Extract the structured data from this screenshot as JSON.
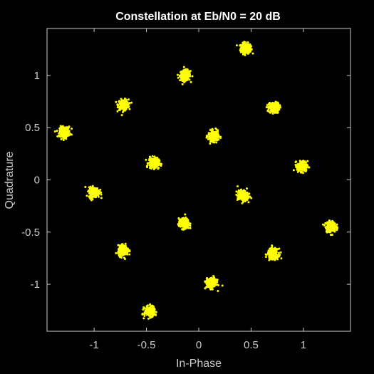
{
  "chart_data": {
    "type": "scatter",
    "title": "Constellation at Eb/N0 = 20 dB",
    "xlabel": "In-Phase",
    "ylabel": "Quadrature",
    "xlim": [
      -1.45,
      1.45
    ],
    "ylim": [
      -1.45,
      1.45
    ],
    "xticks": [
      -1,
      -0.5,
      0,
      0.5,
      1
    ],
    "xtick_labels": [
      "-1",
      "-0.5",
      "0",
      "0.5",
      "1"
    ],
    "yticks": [
      1,
      0.5,
      0,
      -0.5,
      -1
    ],
    "ytick_labels": [
      "1",
      "0.5",
      "0",
      "-0.5",
      "-1"
    ],
    "grid": false,
    "background_color": "#000000",
    "axes_color": "#cccccc",
    "marker_color": "#ffff00",
    "clusters": [
      {
        "x": 0.45,
        "y": 1.26
      },
      {
        "x": -0.13,
        "y": 1.0
      },
      {
        "x": -0.72,
        "y": 0.72
      },
      {
        "x": 0.72,
        "y": 0.69
      },
      {
        "x": -1.28,
        "y": 0.46
      },
      {
        "x": 0.14,
        "y": 0.42
      },
      {
        "x": -0.43,
        "y": 0.16
      },
      {
        "x": 0.99,
        "y": 0.13
      },
      {
        "x": -1.0,
        "y": -0.12
      },
      {
        "x": 0.42,
        "y": -0.15
      },
      {
        "x": -0.14,
        "y": -0.42
      },
      {
        "x": 1.26,
        "y": -0.45
      },
      {
        "x": -0.72,
        "y": -0.68
      },
      {
        "x": 0.71,
        "y": -0.71
      },
      {
        "x": 0.12,
        "y": -0.99
      },
      {
        "x": -0.47,
        "y": -1.26
      }
    ],
    "cluster_spread": 0.045,
    "points_per_cluster": 220
  }
}
